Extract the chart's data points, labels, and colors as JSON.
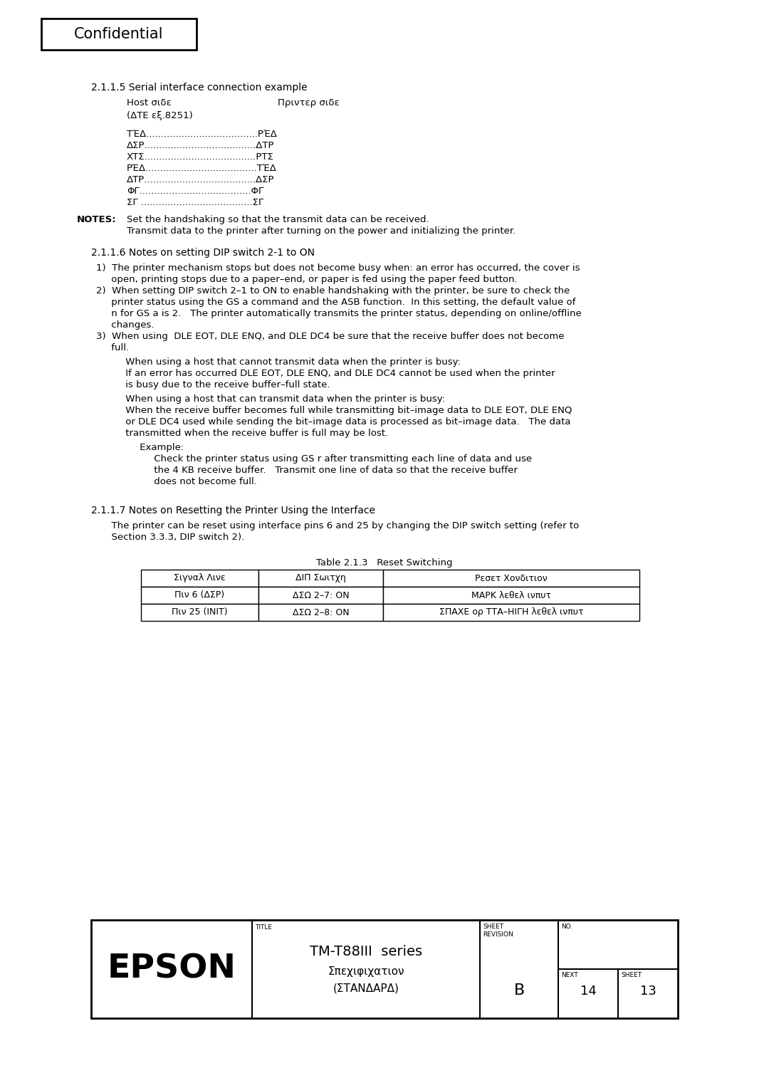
{
  "bg_color": "#ffffff",
  "confidential_text": "Confidential",
  "section_215_title": "2.1.1.5 Serial interface connection example",
  "host_side": "Host σιδε",
  "printer_side": "Πριντερ σιδε",
  "dte_note": "(ΔΤΕ εξ.8251)",
  "pin_rows": [
    [
      "ΤΈΔ",
      "ΡΈΔ"
    ],
    [
      "ΔΣΡ",
      "ΔΤΡ"
    ],
    [
      "ΧΤΣ",
      "ΡΤΣ"
    ],
    [
      "ΡΈΔ",
      "ΤΈΔ"
    ],
    [
      "ΔΤΡ",
      "ΔΣΡ"
    ],
    [
      "ΦΓ",
      "ΦΓ"
    ],
    [
      "ΣΓ ",
      "ΣΓ"
    ]
  ],
  "notes_label": "NOTES:",
  "notes_line1": "Set the handshaking so that the transmit data can be received.",
  "notes_line2": "Transmit data to the printer after turning on the power and initializing the printer.",
  "section_216_title": "2.1.1.6 Notes on setting DIP switch 2-1 to ON",
  "items": [
    "1)  The printer mechanism stops but does not become busy when: an error has occurred, the cover is",
    "     open, printing stops due to a paper–end, or paper is fed using the paper feed button.",
    "2)  When setting DIP switch 2–1 to ON to enable handshaking with the printer, be sure to check the",
    "     printer status using the GS a command and the ASB function.  In this setting, the default value of",
    "     n for GS a is 2.   The printer automatically transmits the printer status, depending on online/offline",
    "     changes.",
    "3)  When using  DLE EOT, DLE ENQ, and DLE DC4 be sure that the receive buffer does not become",
    "     full."
  ],
  "sub1_header": "     When using a host that cannot transmit data when the printer is busy:",
  "sub1_lines": [
    "     If an error has occurred DLE EOT, DLE ENQ, and DLE DC4 cannot be used when the printer",
    "     is busy due to the receive buffer–full state."
  ],
  "sub2_header": "     When using a host that can transmit data when the printer is busy:",
  "sub2_lines": [
    "     When the receive buffer becomes full while transmitting bit–image data to DLE EOT, DLE ENQ",
    "     or DLE DC4 used while sending the bit–image data is processed as bit–image data.   The data",
    "     transmitted when the receive buffer is full may be lost."
  ],
  "example_label": "     Example:",
  "example_lines": [
    "     Check the printer status using GS r after transmitting each line of data and use",
    "     the 4 KB receive buffer.   Transmit one line of data so that the receive buffer",
    "     does not become full."
  ],
  "section_217_title": "2.1.1.7 Notes on Resetting the Printer Using the Interface",
  "section_217_lines": [
    "  The printer can be reset using interface pins 6 and 25 by changing the DIP switch setting (refer to",
    "  Section 3.3.3, DIP switch 2)."
  ],
  "table_title": "Table 2.1.3   Reset Switching",
  "table_headers": [
    "Σιγναλ Λινε",
    "ΔΙΠ Σωιτχη",
    "Ρεσετ Χονδιτιον"
  ],
  "table_rows": [
    [
      "Πιν 6 (ΔΣΡ)",
      "ΔΣΩ 2–7: ON",
      "ΜΑΡΚ λεθελ ινπυτ"
    ],
    [
      "Πιν 25 (INIT)",
      "ΔΣΩ 2–8: ON",
      "ΣΠΑΧΕ ορ ΤΤΑ–ΗΙΓΗ λεθελ ινπυτ"
    ]
  ],
  "footer_epson": "EPSON",
  "footer_title_label": "TITLE",
  "footer_title_line1": "TM-T88III  series",
  "footer_title_line2": "Σπεχιφιχατιον",
  "footer_title_line3": "(ΣΤΑΝΔΑΡΔ)",
  "footer_sheet_rev_label1": "SHEET",
  "footer_sheet_rev_label2": "REVISION",
  "footer_no_label": "NO.",
  "footer_revision": "B",
  "footer_next_label": "NEXT",
  "footer_sheet_label": "SHEET",
  "footer_next_val": "14",
  "footer_sheet_val": "13"
}
